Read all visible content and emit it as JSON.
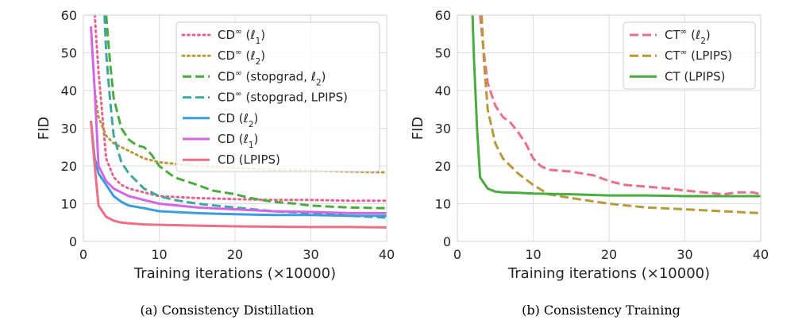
{
  "chart_data": [
    {
      "type": "line",
      "caption": "(a) Consistency Distillation",
      "xlabel": "Training iterations (×10000)",
      "ylabel": "FID",
      "xlim": [
        0,
        40
      ],
      "ylim": [
        0,
        60
      ],
      "xticks": [
        "0",
        "10",
        "20",
        "30",
        "40"
      ],
      "yticks": [
        "0",
        "10",
        "20",
        "30",
        "40",
        "50",
        "60"
      ],
      "grid": true,
      "legend_position": "top-right",
      "series": [
        {
          "name": "CD∞ (ℓ1)",
          "color": "#e8638a",
          "dash": "dotted",
          "points": [
            [
              1.5,
              60
            ],
            [
              2,
              45
            ],
            [
              3,
              22
            ],
            [
              4,
              17
            ],
            [
              5,
              15
            ],
            [
              6,
              14
            ],
            [
              8,
              13
            ],
            [
              10,
              12
            ],
            [
              15,
              11.5
            ],
            [
              20,
              11.2
            ],
            [
              25,
              11
            ],
            [
              30,
              11
            ],
            [
              35,
              10.8
            ],
            [
              40,
              10.8
            ]
          ]
        },
        {
          "name": "CD∞ (ℓ2)",
          "color": "#b89a3c",
          "dash": "dotted",
          "points": [
            [
              1.5,
              40
            ],
            [
              2,
              33
            ],
            [
              3,
              28
            ],
            [
              4,
              26
            ],
            [
              5,
              25
            ],
            [
              6,
              24
            ],
            [
              8,
              22
            ],
            [
              10,
              21
            ],
            [
              15,
              20
            ],
            [
              20,
              19.5
            ],
            [
              25,
              19
            ],
            [
              30,
              18.8
            ],
            [
              35,
              18.5
            ],
            [
              40,
              18.3
            ]
          ]
        },
        {
          "name": "CD∞ (stopgrad, ℓ2)",
          "color": "#4aac3e",
          "dash": "dashed",
          "points": [
            [
              3,
              60
            ],
            [
              3.5,
              48
            ],
            [
              4,
              38
            ],
            [
              5,
              30
            ],
            [
              6,
              27
            ],
            [
              7,
              25.5
            ],
            [
              8,
              25
            ],
            [
              9,
              23
            ],
            [
              10,
              20
            ],
            [
              12,
              17
            ],
            [
              15,
              15
            ],
            [
              17,
              13.5
            ],
            [
              20,
              12.5
            ],
            [
              22,
              11.5
            ],
            [
              25,
              10.5
            ],
            [
              28,
              10
            ],
            [
              30,
              9.5
            ],
            [
              35,
              9
            ],
            [
              40,
              8.8
            ]
          ]
        },
        {
          "name": "CD∞ (stopgrad, LPIPS)",
          "color": "#3fa7a0",
          "dash": "dashed",
          "points": [
            [
              2.8,
              60
            ],
            [
              3,
              50
            ],
            [
              3.5,
              38
            ],
            [
              4,
              28
            ],
            [
              5,
              21
            ],
            [
              6,
              18
            ],
            [
              8,
              14
            ],
            [
              10,
              12
            ],
            [
              12,
              11
            ],
            [
              15,
              10
            ],
            [
              20,
              9
            ],
            [
              25,
              8
            ],
            [
              30,
              7.5
            ],
            [
              35,
              6.8
            ],
            [
              38,
              6.5
            ],
            [
              40,
              6.3
            ]
          ]
        },
        {
          "name": "CD (ℓ2)",
          "color": "#3d9be0",
          "dash": "solid",
          "points": [
            [
              1,
              32
            ],
            [
              1.5,
              22
            ],
            [
              2,
              18
            ],
            [
              3,
              15
            ],
            [
              4,
              12
            ],
            [
              5,
              10.5
            ],
            [
              6,
              9.5
            ],
            [
              8,
              8.8
            ],
            [
              10,
              8
            ],
            [
              15,
              7.5
            ],
            [
              20,
              7.2
            ],
            [
              25,
              7
            ],
            [
              30,
              7
            ],
            [
              35,
              6.8
            ],
            [
              40,
              6.8
            ]
          ]
        },
        {
          "name": "CD (ℓ1)",
          "color": "#d266e6",
          "dash": "solid",
          "points": [
            [
              1,
              57
            ],
            [
              1.5,
              40
            ],
            [
              2,
              20
            ],
            [
              3,
              16
            ],
            [
              4,
              14
            ],
            [
              5,
              13
            ],
            [
              6,
              12
            ],
            [
              8,
              11
            ],
            [
              10,
              10
            ],
            [
              15,
              9
            ],
            [
              20,
              8.5
            ],
            [
              25,
              8
            ],
            [
              30,
              7.8
            ],
            [
              35,
              7.5
            ],
            [
              40,
              7.5
            ]
          ]
        },
        {
          "name": "CD (LPIPS)",
          "color": "#ed6f86",
          "dash": "solid",
          "points": [
            [
              1,
              32
            ],
            [
              1.5,
              20
            ],
            [
              2,
              9.5
            ],
            [
              3,
              6.5
            ],
            [
              4,
              5.5
            ],
            [
              5,
              5
            ],
            [
              6,
              4.8
            ],
            [
              8,
              4.5
            ],
            [
              10,
              4.4
            ],
            [
              15,
              4.2
            ],
            [
              20,
              4
            ],
            [
              25,
              3.9
            ],
            [
              30,
              3.8
            ],
            [
              35,
              3.8
            ],
            [
              40,
              3.7
            ]
          ]
        }
      ]
    },
    {
      "type": "line",
      "caption": "(b) Consistency Training",
      "xlabel": "Training iterations (×10000)",
      "ylabel": "FID",
      "xlim": [
        0,
        40
      ],
      "ylim": [
        0,
        60
      ],
      "xticks": [
        "0",
        "10",
        "20",
        "30",
        "40"
      ],
      "yticks": [
        "0",
        "10",
        "20",
        "30",
        "40",
        "50",
        "60"
      ],
      "grid": true,
      "legend_position": "top-right",
      "series": [
        {
          "name": "CT∞ (ℓ2)",
          "color": "#e8708a",
          "dash": "dashed",
          "points": [
            [
              3,
              60
            ],
            [
              3.5,
              50
            ],
            [
              4,
              42
            ],
            [
              5,
              36
            ],
            [
              6,
              33
            ],
            [
              7,
              31.5
            ],
            [
              8,
              29
            ],
            [
              9,
              26
            ],
            [
              10,
              22
            ],
            [
              11,
              20
            ],
            [
              12,
              19
            ],
            [
              15,
              18.5
            ],
            [
              18,
              17.5
            ],
            [
              20,
              16
            ],
            [
              22,
              15
            ],
            [
              25,
              14.5
            ],
            [
              28,
              14
            ],
            [
              30,
              13.5
            ],
            [
              35,
              12.5
            ],
            [
              37,
              13
            ],
            [
              39,
              13
            ],
            [
              40,
              12.5
            ]
          ]
        },
        {
          "name": "CT∞ (LPIPS)",
          "color": "#b89a3c",
          "dash": "dashed",
          "points": [
            [
              3.2,
              60
            ],
            [
              3.5,
              48
            ],
            [
              4,
              35
            ],
            [
              5,
              26
            ],
            [
              6,
              22
            ],
            [
              7,
              20
            ],
            [
              8,
              18
            ],
            [
              10,
              15
            ],
            [
              12,
              12.5
            ],
            [
              15,
              11.5
            ],
            [
              20,
              10
            ],
            [
              25,
              9
            ],
            [
              30,
              8.5
            ],
            [
              35,
              8
            ],
            [
              40,
              7.5
            ]
          ]
        },
        {
          "name": "CT (LPIPS)",
          "color": "#4aac3e",
          "dash": "solid",
          "points": [
            [
              2,
              60
            ],
            [
              2.2,
              48
            ],
            [
              2.6,
              30
            ],
            [
              3,
              17
            ],
            [
              4,
              14
            ],
            [
              5,
              13.2
            ],
            [
              6,
              13
            ],
            [
              8,
              12.9
            ],
            [
              10,
              12.7
            ],
            [
              15,
              12.5
            ],
            [
              20,
              12.2
            ],
            [
              25,
              12.2
            ],
            [
              30,
              12
            ],
            [
              35,
              12
            ],
            [
              40,
              12
            ]
          ]
        }
      ]
    }
  ]
}
